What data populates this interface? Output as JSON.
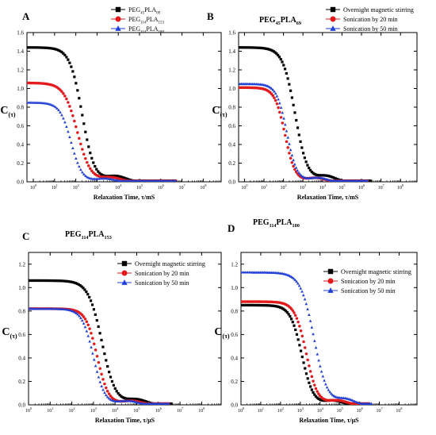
{
  "chart_data": [
    {
      "id": "A",
      "panel_label": "A",
      "type": "scatter",
      "title_parts": [],
      "xlabel": "Relaxation Time, τ/mS",
      "ylabel": "C(τ)",
      "ylabel_main": "C",
      "ylabel_sub": "(τ)",
      "x_scale": "log",
      "xlim": [
        0.5,
        700000000
      ],
      "ylim": [
        0,
        1.6
      ],
      "x_ticks": [
        1,
        10,
        100,
        1000,
        10000,
        100000,
        1000000,
        10000000,
        100000000
      ],
      "x_tick_base": "10",
      "x_tick_exps": [
        "0",
        "1",
        "2",
        "3",
        "4",
        "5",
        "6",
        "7",
        "8"
      ],
      "y_ticks": [
        "0.0",
        "0.2",
        "0.4",
        "0.6",
        "0.8",
        "1.0",
        "1.2",
        "1.4",
        "1.6"
      ],
      "legend_position": "top-right",
      "series": [
        {
          "name_parts": [
            [
              "PEG",
              ""
            ],
            [
              "45",
              "sub"
            ],
            [
              "PLA",
              ""
            ],
            [
              "69",
              "sub"
            ]
          ],
          "color": "#000000",
          "marker": "square",
          "plateau": 1.44,
          "x50": 200,
          "width": 0.55,
          "xmin": 0.5,
          "xmax": 5000000
        },
        {
          "name_parts": [
            [
              "PEG",
              ""
            ],
            [
              "114",
              "sub"
            ],
            [
              "PLA",
              ""
            ],
            [
              "153",
              "sub"
            ]
          ],
          "color": "#e31a1c",
          "marker": "circle",
          "plateau": 1.06,
          "x50": 120,
          "width": 0.6,
          "xmin": 0.5,
          "xmax": 5000000
        },
        {
          "name_parts": [
            [
              "PEG",
              ""
            ],
            [
              "114",
              "sub"
            ],
            [
              "PLA",
              ""
            ],
            [
              "180",
              "sub"
            ]
          ],
          "color": "#1f3fd6",
          "marker": "triangle",
          "plateau": 0.85,
          "x50": 60,
          "width": 0.5,
          "xmin": 0.5,
          "xmax": 5000000
        }
      ]
    },
    {
      "id": "B",
      "panel_label": "B",
      "type": "scatter",
      "title_parts": [
        [
          "PEG",
          ""
        ],
        [
          "45",
          "sub"
        ],
        [
          "PLA",
          ""
        ],
        [
          "69",
          "sub"
        ]
      ],
      "xlabel": "Relaxation Time, τ/mS",
      "ylabel": "C(τ)",
      "ylabel_main": "C",
      "ylabel_sub": "(τ)",
      "x_scale": "log",
      "xlim": [
        0.5,
        700000000
      ],
      "ylim": [
        0,
        1.6
      ],
      "x_ticks": [
        1,
        10,
        100,
        1000,
        10000,
        100000,
        1000000,
        10000000,
        100000000
      ],
      "x_tick_base": "10",
      "x_tick_exps": [
        "0",
        "1",
        "2",
        "3",
        "4",
        "5",
        "6",
        "7",
        "8"
      ],
      "y_ticks": [
        "0.0",
        "0.2",
        "0.4",
        "0.6",
        "0.8",
        "1.0",
        "1.2",
        "1.4",
        "1.6"
      ],
      "legend_position": "top-right",
      "series": [
        {
          "name_parts": [
            [
              "Overnight magnetic stirring",
              ""
            ]
          ],
          "color": "#000000",
          "marker": "square",
          "plateau": 1.44,
          "x50": 400,
          "width": 0.6,
          "xmin": 0.5,
          "xmax": 3000000
        },
        {
          "name_parts": [
            [
              "Sonication by 20 min",
              ""
            ]
          ],
          "color": "#e31a1c",
          "marker": "circle",
          "plateau": 1.01,
          "x50": 120,
          "width": 0.5,
          "xmin": 0.5,
          "xmax": 2000000
        },
        {
          "name_parts": [
            [
              "Sonication by 50 min",
              ""
            ]
          ],
          "color": "#1f3fd6",
          "marker": "triangle",
          "plateau": 1.05,
          "x50": 150,
          "width": 0.5,
          "xmin": 0.5,
          "xmax": 2000000
        }
      ]
    },
    {
      "id": "C",
      "panel_label": "C",
      "type": "scatter",
      "title_parts": [
        [
          "PEG",
          ""
        ],
        [
          "114",
          "sub"
        ],
        [
          "PLA",
          ""
        ],
        [
          "153",
          "sub"
        ]
      ],
      "xlabel": "Relaxation Time, τ/μS",
      "ylabel": "C(τ)",
      "ylabel_main": "C",
      "ylabel_sub": "(τ)",
      "x_scale": "log",
      "xlim": [
        1,
        800000000
      ],
      "ylim": [
        0,
        1.3
      ],
      "x_ticks": [
        1,
        10,
        100,
        1000,
        10000,
        100000,
        1000000,
        10000000,
        100000000
      ],
      "x_tick_base": "10",
      "x_tick_exps": [
        "0",
        "1",
        "2",
        "3",
        "4",
        "5",
        "6",
        "7",
        "8"
      ],
      "y_ticks": [
        "0.0",
        "0.2",
        "0.4",
        "0.6",
        "0.8",
        "1.0",
        "1.2"
      ],
      "legend_position": "top-right",
      "series": [
        {
          "name_parts": [
            [
              "Overnight magnetic stirring",
              ""
            ]
          ],
          "color": "#000000",
          "marker": "square",
          "plateau": 1.06,
          "x50": 2500,
          "width": 0.6,
          "xmin": 1,
          "xmax": 4000000
        },
        {
          "name_parts": [
            [
              "Sonication by 20 min",
              ""
            ]
          ],
          "color": "#e31a1c",
          "marker": "circle",
          "plateau": 0.82,
          "x50": 1500,
          "width": 0.5,
          "xmin": 1,
          "xmax": 3000000
        },
        {
          "name_parts": [
            [
              "Sonication by 50 min",
              ""
            ]
          ],
          "color": "#1f3fd6",
          "marker": "triangle",
          "plateau": 0.82,
          "x50": 1000,
          "width": 0.5,
          "xmin": 1,
          "xmax": 3000000
        }
      ]
    },
    {
      "id": "D",
      "panel_label": "D",
      "type": "scatter",
      "title_parts": [
        [
          "PEG",
          ""
        ],
        [
          "114",
          "sub"
        ],
        [
          "PLA",
          ""
        ],
        [
          "180",
          "sub"
        ]
      ],
      "xlabel": "Relaxation Time, τ/μS",
      "ylabel": "C(τ)",
      "ylabel_main": "C",
      "ylabel_sub": "(τ)",
      "x_scale": "log",
      "xlim": [
        1,
        800000000
      ],
      "ylim": [
        0,
        1.3
      ],
      "x_ticks": [
        1,
        10,
        100,
        1000,
        10000,
        100000,
        1000000,
        10000000,
        100000000
      ],
      "x_tick_base": "10",
      "x_tick_exps": [
        "0",
        "1",
        "2",
        "3",
        "4",
        "5",
        "6",
        "7",
        "8"
      ],
      "y_ticks": [
        "0.0",
        "0.2",
        "0.4",
        "0.6",
        "0.8",
        "1.0",
        "1.2"
      ],
      "legend_position": "top-right",
      "series": [
        {
          "name_parts": [
            [
              "Overnight magnetic stirring",
              ""
            ]
          ],
          "color": "#000000",
          "marker": "square",
          "plateau": 0.85,
          "x50": 1200,
          "width": 0.55,
          "xmin": 1,
          "xmax": 3000000
        },
        {
          "name_parts": [
            [
              "Sonication by 20 min",
              ""
            ]
          ],
          "color": "#e31a1c",
          "marker": "circle",
          "plateau": 0.88,
          "x50": 2000,
          "width": 0.55,
          "xmin": 1,
          "xmax": 3000000
        },
        {
          "name_parts": [
            [
              "Sonication by 50 min",
              ""
            ]
          ],
          "color": "#1f3fd6",
          "marker": "triangle",
          "plateau": 1.13,
          "x50": 5000,
          "width": 0.65,
          "xmin": 1,
          "xmax": 4000000
        }
      ]
    }
  ]
}
